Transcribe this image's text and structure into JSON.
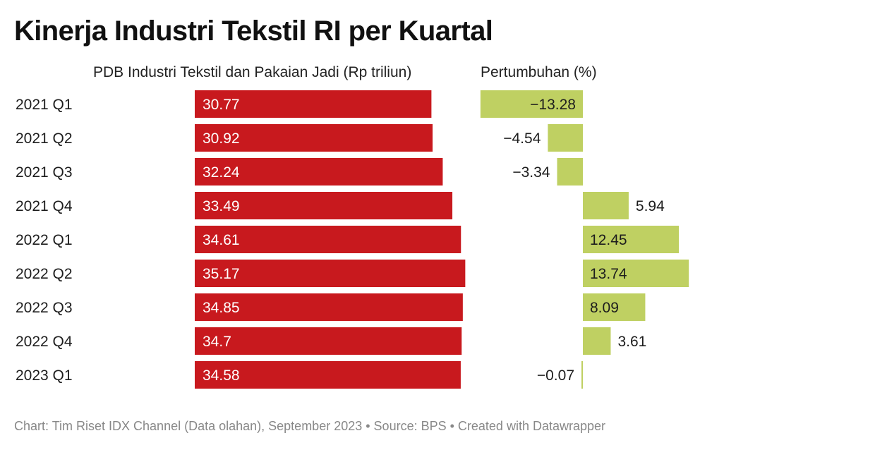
{
  "title": "Kinerja Industri Tekstil RI per Kuartal",
  "footer": "Chart: Tim Riset IDX Channel (Data olahan), September 2023 • Source: BPS • Created with Datawrapper",
  "colors": {
    "gdp_bar": "#c8191e",
    "growth_bar": "#bfd062",
    "text": "#1d1d1d",
    "footer": "#888888"
  },
  "chart_data": {
    "type": "bar",
    "orientation": "horizontal",
    "categories": [
      "2021 Q1",
      "2021 Q2",
      "2021 Q3",
      "2021 Q4",
      "2022 Q1",
      "2022 Q2",
      "2022 Q3",
      "2022 Q4",
      "2023 Q1"
    ],
    "series": [
      {
        "name": "PDB Industri Tekstil dan Pakaian Jadi (Rp triliun)",
        "values": [
          30.77,
          30.92,
          32.24,
          33.49,
          34.61,
          35.17,
          34.85,
          34.7,
          34.58
        ]
      },
      {
        "name": "Pertumbuhan (%)",
        "values": [
          -13.28,
          -4.54,
          -3.34,
          5.94,
          12.45,
          13.74,
          8.09,
          3.61,
          -0.07
        ]
      }
    ],
    "labels": {
      "gdp": [
        "30.77",
        "30.92",
        "32.24",
        "33.49",
        "34.61",
        "35.17",
        "34.85",
        "34.7",
        "34.58"
      ],
      "growth": [
        "−13.28",
        "−4.54",
        "−3.34",
        "5.94",
        "12.45",
        "13.74",
        "8.09",
        "3.61",
        "−0.07"
      ]
    },
    "grid": false,
    "legend": "none"
  }
}
